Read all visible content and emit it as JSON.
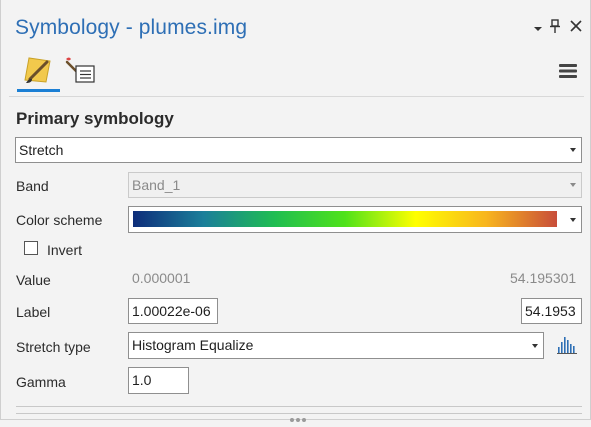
{
  "window": {
    "title": "Symbology - plumes.img"
  },
  "tabs": [
    {
      "name": "primary-symbology-tab",
      "icon": "paintbrush-icon",
      "active": true
    },
    {
      "name": "secondary-symbology-tab",
      "icon": "brush-list-icon",
      "active": false
    }
  ],
  "section": {
    "heading": "Primary symbology"
  },
  "renderer": {
    "value": "Stretch"
  },
  "band": {
    "label": "Band",
    "value": "Band_1"
  },
  "color_scheme": {
    "label": "Color scheme",
    "colors": [
      "#0e2d7a",
      "#1b7f9a",
      "#1fbd52",
      "#4fe21a",
      "#ffff00",
      "#f8b51e",
      "#c84d3a"
    ]
  },
  "invert": {
    "label": "Invert",
    "checked": false
  },
  "value_row": {
    "label": "Value",
    "min": "0.000001",
    "max": "54.195301"
  },
  "label_row": {
    "label": "Label",
    "min": "1.00022e-06",
    "max": "54.1953"
  },
  "stretch_type": {
    "label": "Stretch type",
    "value": "Histogram Equalize"
  },
  "gamma": {
    "label": "Gamma",
    "value": "1.0"
  },
  "colors": {
    "accent": "#2e6fb5",
    "tab_underline": "#1b7fd4"
  }
}
